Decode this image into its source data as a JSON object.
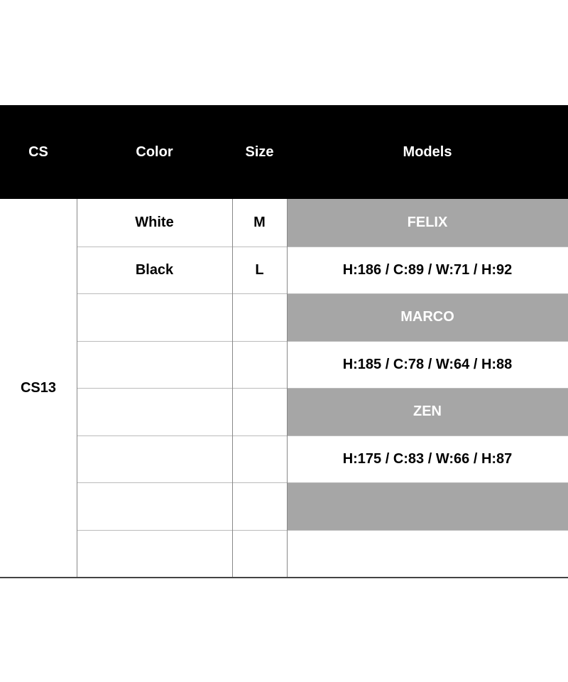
{
  "header": {
    "cs": "CS",
    "color": "Color",
    "size": "Size",
    "models": "Models"
  },
  "cs_value": "CS13",
  "shade_color": "#a6a6a6",
  "rows": [
    {
      "color": "White",
      "size": "M",
      "model": "FELIX",
      "shaded": true
    },
    {
      "color": "Black",
      "size": "L",
      "model": "H:186 / C:89 / W:71 / H:92",
      "shaded": false
    },
    {
      "color": "",
      "size": "",
      "model": "MARCO",
      "shaded": true
    },
    {
      "color": "",
      "size": "",
      "model": "H:185 / C:78 / W:64 / H:88",
      "shaded": false
    },
    {
      "color": "",
      "size": "",
      "model": "ZEN",
      "shaded": true
    },
    {
      "color": "",
      "size": "",
      "model": "H:175 / C:83 / W:66 / H:87",
      "shaded": false
    },
    {
      "color": "",
      "size": "",
      "model": "",
      "shaded": true
    },
    {
      "color": "",
      "size": "",
      "model": "",
      "shaded": false
    }
  ]
}
